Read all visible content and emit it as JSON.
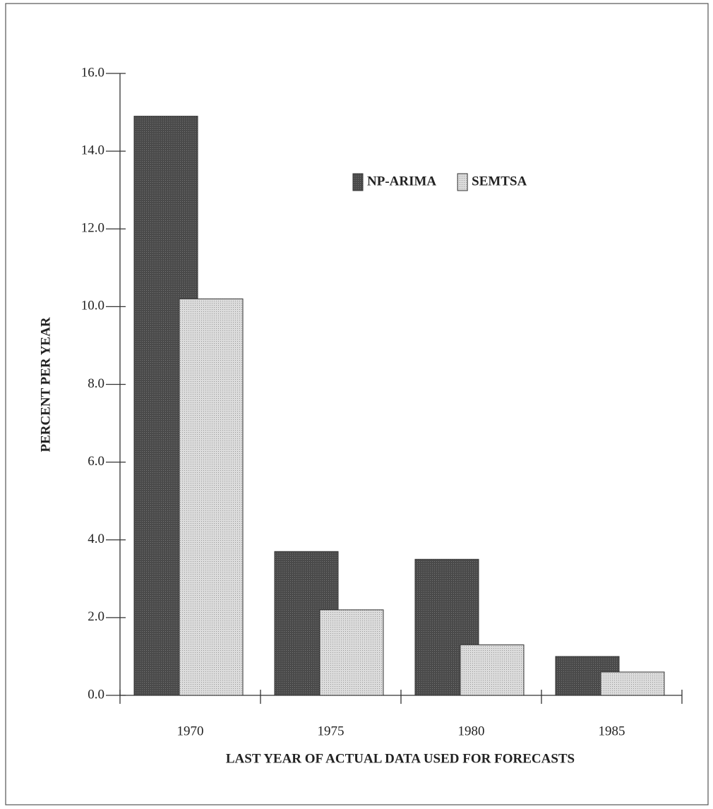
{
  "chart_data": {
    "type": "bar",
    "x_label": "LAST YEAR OF ACTUAL DATA USED FOR FORECASTS",
    "y_label": "PERCENT PER YEAR",
    "categories": [
      "1970",
      "1975",
      "1980",
      "1985"
    ],
    "series": [
      {
        "name": "NP-ARIMA",
        "color": "#4a4a4a",
        "values": [
          14.9,
          3.7,
          3.5,
          1.0
        ]
      },
      {
        "name": "SEMTSA",
        "color": "#dcdcdc",
        "values": [
          10.2,
          2.2,
          1.3,
          0.6
        ]
      }
    ],
    "ylim": [
      0,
      16
    ],
    "yticks": [
      {
        "value": 0,
        "label": "0.0"
      },
      {
        "value": 2,
        "label": "2.0"
      },
      {
        "value": 4,
        "label": "4.0"
      },
      {
        "value": 6,
        "label": "6.0"
      },
      {
        "value": 8,
        "label": "8.0"
      },
      {
        "value": 10,
        "label": "10.0"
      },
      {
        "value": 12,
        "label": "12.0"
      },
      {
        "value": 14,
        "label": "14.0"
      },
      {
        "value": 16,
        "label": "16.0"
      }
    ],
    "legend": "upper right"
  }
}
